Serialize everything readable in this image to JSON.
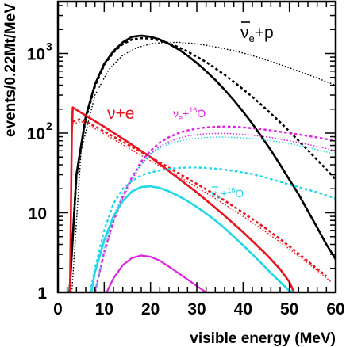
{
  "chart_data": {
    "type": "line",
    "title": "",
    "xlabel": "visible energy (MeV)",
    "ylabel": "events/0.22Mt/MeV",
    "xlim": [
      0,
      60
    ],
    "ylim": [
      1,
      5000
    ],
    "yscale": "log",
    "grid": false,
    "x_ticks": [
      "0",
      "10",
      "20",
      "30",
      "40",
      "50",
      "60"
    ],
    "y_ticks": [
      {
        "base": "1",
        "exp": ""
      },
      {
        "base": "10",
        "exp": ""
      },
      {
        "base": "10",
        "exp": "2"
      },
      {
        "base": "10",
        "exp": "3"
      }
    ],
    "annotations": {
      "ibd": {
        "nu": "ν",
        "sub": "e",
        "rest": "+p",
        "color": "#000000"
      },
      "elastic": {
        "text": "ν+e",
        "sup": "-",
        "color": "#e8141e"
      },
      "nue_o16": {
        "nu": "ν",
        "sub": "e",
        "plus": "+",
        "sup": "16",
        "el": "O",
        "color": "#e020e0"
      },
      "nuebar_o16": {
        "nu": "ν",
        "sub": "e",
        "plus": "+",
        "sup": "16",
        "el": "O",
        "color": "#20d8e8"
      }
    },
    "series": [
      {
        "color": "#000000",
        "dash": "solid",
        "width": 2.6,
        "x": [
          2.5,
          4,
          6,
          8,
          10,
          12,
          14,
          16,
          18,
          20,
          22,
          24,
          26,
          28,
          30,
          32,
          34,
          36,
          38,
          40,
          42,
          44,
          46,
          48,
          50,
          52,
          54,
          56,
          58,
          60
        ],
        "y": [
          1,
          30,
          160,
          410,
          740,
          1070,
          1380,
          1620,
          1680,
          1620,
          1500,
          1320,
          1130,
          940,
          760,
          600,
          465,
          350,
          258,
          186,
          131,
          90,
          61,
          40,
          26,
          17,
          10.5,
          6.5,
          4.0,
          2.6
        ]
      },
      {
        "color": "#000000",
        "dash": "dotted-thick",
        "width": 2.6,
        "x": [
          2.5,
          4,
          6,
          8,
          10,
          12,
          14,
          16,
          18,
          20,
          22,
          24,
          26,
          28,
          30,
          32,
          34,
          36,
          38,
          40,
          42,
          44,
          46,
          48,
          50,
          52,
          54,
          56,
          58,
          60
        ],
        "y": [
          1,
          28,
          150,
          390,
          720,
          1030,
          1310,
          1500,
          1560,
          1540,
          1460,
          1340,
          1200,
          1060,
          910,
          780,
          650,
          540,
          440,
          355,
          285,
          225,
          176,
          137,
          105,
          80,
          61,
          46,
          35,
          26
        ]
      },
      {
        "color": "#000000",
        "dash": "dotted-fine",
        "width": 1.4,
        "x": [
          3,
          5,
          8,
          11,
          14,
          17,
          20,
          23,
          26,
          29,
          32,
          35,
          38,
          41,
          44,
          47,
          50,
          53,
          56,
          59,
          60
        ],
        "y": [
          1,
          60,
          300,
          630,
          950,
          1180,
          1320,
          1380,
          1380,
          1340,
          1270,
          1180,
          1080,
          980,
          870,
          760,
          660,
          570,
          490,
          420,
          400
        ]
      },
      {
        "color": "#e8141e",
        "dash": "solid",
        "width": 2.6,
        "x": [
          2.6,
          3,
          3.2,
          5,
          10,
          15,
          20,
          25,
          30,
          35,
          40,
          45,
          48,
          50,
          51
        ],
        "y": [
          1,
          100,
          210,
          180,
          120,
          78,
          50,
          30,
          18,
          10.3,
          5.7,
          3.0,
          1.95,
          1.35,
          1.0
        ]
      },
      {
        "color": "#e8141e",
        "dash": "dotted-thick",
        "width": 2.6,
        "x": [
          3.2,
          5,
          10,
          15,
          20,
          25,
          30,
          35,
          40,
          45,
          50,
          55,
          58
        ],
        "y": [
          140,
          150,
          105,
          72,
          50,
          34,
          23,
          15.5,
          10,
          6.3,
          3.8,
          2.2,
          1.6
        ]
      },
      {
        "color": "#e8141e",
        "dash": "dotted-fine",
        "width": 1.4,
        "x": [
          3.2,
          5,
          10,
          15,
          20,
          25,
          30,
          35,
          40,
          45,
          50,
          55,
          59
        ],
        "y": [
          130,
          140,
          98,
          66,
          45,
          31,
          21,
          13.8,
          9,
          5.7,
          3.5,
          2.1,
          1.35
        ]
      },
      {
        "color": "#e020e0",
        "dash": "solid",
        "width": 2.2,
        "x": [
          10.5,
          12,
          14,
          16,
          18,
          20,
          22,
          24,
          26,
          28,
          30,
          32
        ],
        "y": [
          1,
          1.5,
          2.2,
          2.7,
          2.9,
          2.8,
          2.5,
          2.1,
          1.75,
          1.45,
          1.2,
          1.0
        ]
      },
      {
        "color": "#e020e0",
        "dash": "dotted-thick",
        "width": 2.4,
        "x": [
          8,
          10,
          12,
          14,
          16,
          18,
          20,
          22,
          24,
          26,
          28,
          30,
          32,
          34,
          36,
          38,
          40,
          42,
          44,
          46,
          48,
          50,
          52,
          54,
          56,
          58,
          60
        ],
        "y": [
          1,
          3.2,
          8,
          16,
          28,
          44,
          60,
          76,
          89,
          100,
          108,
          114,
          118,
          120,
          121,
          120,
          118,
          115,
          112,
          108,
          104,
          100,
          96,
          92,
          88,
          84,
          80
        ]
      },
      {
        "color": "#e020e0",
        "dash": "dotted-fine",
        "width": 1.4,
        "x": [
          8,
          10,
          12,
          14,
          16,
          18,
          20,
          22,
          24,
          26,
          28,
          30,
          32,
          34,
          36,
          38,
          40,
          42,
          44,
          46,
          48,
          50,
          52,
          54,
          56,
          58,
          60
        ],
        "y": [
          1,
          3,
          7.5,
          15,
          26,
          40,
          55,
          68,
          78,
          86,
          92,
          96,
          98,
          99,
          99,
          98,
          96,
          94,
          91,
          88,
          84,
          80,
          76,
          72,
          68,
          64,
          60
        ]
      },
      {
        "color": "#20d8e8",
        "dash": "solid",
        "width": 2.6,
        "x": [
          7.2,
          8,
          10,
          12,
          14,
          16,
          18,
          20,
          22,
          24,
          26,
          28,
          30,
          32,
          34,
          36,
          38,
          40,
          42,
          44,
          46,
          48,
          50,
          51
        ],
        "y": [
          1,
          1.8,
          4.5,
          9,
          14,
          18.5,
          21,
          21.5,
          20.5,
          18.5,
          16.3,
          14,
          11.8,
          9.8,
          8,
          6.4,
          5,
          3.9,
          3.0,
          2.3,
          1.75,
          1.35,
          1.05,
          1.0
        ]
      },
      {
        "color": "#20d8e8",
        "dash": "dotted-thick",
        "width": 2.4,
        "x": [
          7,
          8,
          10,
          12,
          14,
          16,
          18,
          20,
          22,
          24,
          26,
          28,
          30,
          32,
          34,
          36,
          38,
          40,
          42,
          44,
          46,
          48,
          50,
          52,
          54,
          56,
          58,
          60
        ],
        "y": [
          1,
          2,
          6,
          13,
          20,
          25,
          29.5,
          32,
          34,
          35.5,
          36.5,
          37,
          37,
          36.5,
          35.8,
          34.8,
          33.5,
          32,
          30.5,
          28.5,
          26.5,
          24.5,
          22.5,
          21,
          19.5,
          18,
          16.5,
          15
        ]
      },
      {
        "color": "#20d8e8",
        "dash": "dotted-fine",
        "width": 1.4,
        "x": [
          8,
          10,
          12,
          14,
          16,
          18,
          20,
          22,
          24,
          26,
          28,
          30,
          32,
          34,
          36,
          38,
          40,
          42,
          44,
          46,
          48,
          50,
          52,
          54,
          56,
          58,
          60
        ],
        "y": [
          1,
          3.5,
          9,
          17,
          28,
          41,
          54,
          65,
          73,
          79,
          83,
          86,
          88,
          89,
          89,
          88,
          87,
          85,
          83,
          80,
          77,
          74,
          70,
          66,
          62,
          58,
          54
        ]
      }
    ]
  }
}
